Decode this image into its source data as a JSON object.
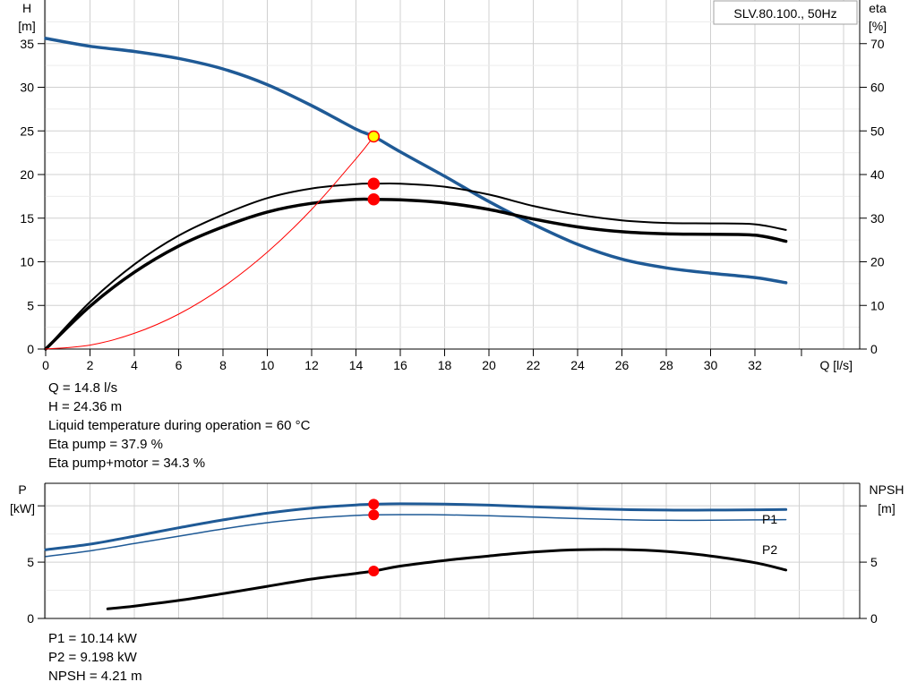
{
  "chart_data": [
    {
      "type": "line",
      "title": "SLV.80.100., 50Hz",
      "xlabel": "Q [l/s]",
      "ylabel_left": [
        "H",
        "[m]"
      ],
      "ylabel_right": [
        "eta",
        "[%]"
      ],
      "xlim": [
        0,
        36
      ],
      "ylim_left": [
        0,
        40
      ],
      "ylim_right": [
        0,
        80
      ],
      "xticks": [
        0,
        2,
        4,
        6,
        8,
        10,
        12,
        14,
        16,
        18,
        20,
        22,
        24,
        26,
        28,
        30,
        32
      ],
      "yticks_left": [
        0,
        5,
        10,
        15,
        20,
        25,
        30,
        35
      ],
      "yticks_right": [
        0,
        10,
        20,
        30,
        40,
        50,
        60,
        70
      ],
      "grid": true,
      "series": [
        {
          "axis": "left",
          "color": "#1f5a96",
          "width": 3.5,
          "x": [
            0,
            2,
            4,
            6,
            8,
            10,
            12,
            14,
            14.8,
            16,
            18,
            20,
            22,
            24,
            26,
            28,
            30,
            32,
            33.4
          ],
          "y": [
            35.6,
            34.7,
            34.1,
            33.3,
            32.1,
            30.3,
            27.9,
            25.2,
            24.36,
            22.6,
            19.8,
            16.9,
            14.3,
            12.0,
            10.3,
            9.3,
            8.7,
            8.2,
            7.6
          ]
        },
        {
          "axis": "right",
          "color": "#000000",
          "width": 2,
          "x": [
            0,
            2,
            4,
            6,
            8,
            10,
            12,
            14,
            14.8,
            16,
            18,
            20,
            22,
            24,
            26,
            28,
            30,
            32,
            33.4
          ],
          "y": [
            0,
            10.8,
            19.4,
            26.0,
            30.8,
            34.6,
            36.8,
            37.8,
            37.9,
            37.9,
            37.2,
            35.4,
            32.8,
            30.8,
            29.5,
            28.9,
            28.8,
            28.6,
            27.3
          ]
        },
        {
          "axis": "right",
          "color": "#000000",
          "width": 3.5,
          "x": [
            0,
            2,
            4,
            6,
            8,
            10,
            12,
            14,
            14.8,
            16,
            18,
            20,
            22,
            24,
            26,
            28,
            30,
            32,
            33.4
          ],
          "y": [
            0,
            9.8,
            17.6,
            23.6,
            28.0,
            31.4,
            33.4,
            34.3,
            34.3,
            34.2,
            33.5,
            32.0,
            29.8,
            28.0,
            26.9,
            26.4,
            26.3,
            26.1,
            24.7
          ]
        },
        {
          "axis": "left",
          "color": "#ff0000",
          "width": 1,
          "x": [
            0,
            2,
            4,
            6,
            8,
            10,
            12,
            14,
            14.8
          ],
          "y": [
            0,
            0.45,
            1.8,
            4.0,
            7.1,
            11.1,
            16.0,
            21.8,
            24.36
          ]
        }
      ],
      "markers": [
        {
          "x": 14.8,
          "y": 24.36,
          "axis": "left",
          "fill": "#ffff00",
          "stroke": "#ff0000"
        },
        {
          "x": 14.8,
          "y": 37.9,
          "axis": "right",
          "fill": "#ff0000",
          "stroke": "#ff0000"
        },
        {
          "x": 14.8,
          "y": 34.3,
          "axis": "right",
          "fill": "#ff0000",
          "stroke": "#ff0000"
        }
      ]
    },
    {
      "type": "line",
      "xlim": [
        0,
        36
      ],
      "ylabel_left": [
        "P",
        "[kW]"
      ],
      "ylabel_right": [
        "NPSH",
        "[m]"
      ],
      "ylim_left": [
        0,
        12
      ],
      "ylim_right": [
        0,
        12
      ],
      "yticks_left": [
        0,
        5
      ],
      "yticks_right": [
        0,
        5
      ],
      "grid": true,
      "series": [
        {
          "name": "P1",
          "axis": "left",
          "color": "#1f5a96",
          "width": 3,
          "x": [
            0,
            2,
            4,
            6,
            8,
            10,
            12,
            14,
            14.8,
            16,
            18,
            20,
            22,
            24,
            26,
            28,
            30,
            32,
            33.4
          ],
          "y": [
            6.1,
            6.6,
            7.3,
            8.05,
            8.75,
            9.35,
            9.8,
            10.08,
            10.14,
            10.18,
            10.15,
            10.06,
            9.92,
            9.78,
            9.67,
            9.62,
            9.62,
            9.65,
            9.67
          ]
        },
        {
          "name": "P2",
          "axis": "left",
          "color": "#1f5a96",
          "width": 1.5,
          "x": [
            0,
            2,
            4,
            6,
            8,
            10,
            12,
            14,
            14.8,
            16,
            18,
            20,
            22,
            24,
            26,
            28,
            30,
            32,
            33.4
          ],
          "y": [
            5.5,
            6.0,
            6.65,
            7.3,
            7.95,
            8.5,
            8.9,
            9.15,
            9.198,
            9.22,
            9.2,
            9.12,
            9.0,
            8.87,
            8.77,
            8.72,
            8.72,
            8.75,
            8.77
          ]
        },
        {
          "axis": "right",
          "color": "#000000",
          "width": 3,
          "x": [
            2.8,
            4,
            6,
            8,
            10,
            12,
            14,
            14.8,
            16,
            18,
            20,
            22,
            24,
            26,
            28,
            30,
            32,
            33.4
          ],
          "y": [
            0.85,
            1.1,
            1.6,
            2.2,
            2.85,
            3.5,
            4.0,
            4.21,
            4.65,
            5.15,
            5.55,
            5.9,
            6.1,
            6.12,
            5.95,
            5.55,
            4.95,
            4.3
          ]
        }
      ],
      "markers": [
        {
          "x": 14.8,
          "y": 10.14,
          "axis": "left",
          "fill": "#ff0000",
          "stroke": "#ff0000"
        },
        {
          "x": 14.8,
          "y": 9.198,
          "axis": "left",
          "fill": "#ff0000",
          "stroke": "#ff0000"
        },
        {
          "x": 14.8,
          "y": 4.21,
          "axis": "right",
          "fill": "#ff0000",
          "stroke": "#ff0000"
        }
      ]
    }
  ],
  "info_top": [
    "Q = 14.8 l/s",
    "H = 24.36 m",
    "Liquid temperature during operation = 60 °C",
    "Eta pump = 37.9 %",
    "Eta pump+motor = 34.3 %"
  ],
  "info_bottom": [
    "P1 = 10.14 kW",
    "P2 = 9.198 kW",
    "NPSH = 4.21 m"
  ]
}
